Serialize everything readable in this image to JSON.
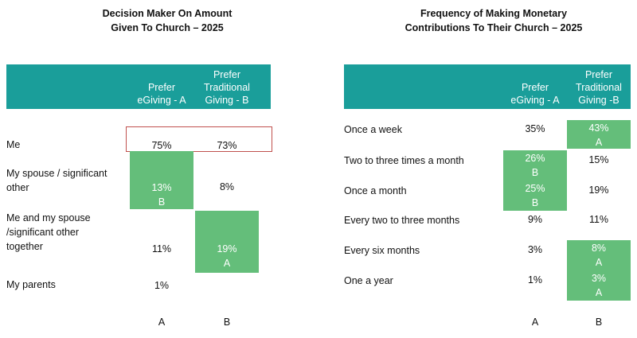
{
  "chart_data": [
    {
      "type": "table",
      "title": [
        "Decision Maker On Amount",
        "Given To Church – 2025"
      ],
      "columns": [
        [
          "Prefer",
          "eGiving - A"
        ],
        [
          "Prefer",
          "Traditional",
          "Giving - B"
        ]
      ],
      "rows": [
        {
          "label": [
            "Me"
          ],
          "values": [
            "75%",
            "73%"
          ],
          "sig": [
            "",
            ""
          ],
          "highlight": [
            false,
            false
          ],
          "outlined": true
        },
        {
          "label": [
            "My spouse / significant",
            "other"
          ],
          "values": [
            "13%",
            "8%"
          ],
          "sig": [
            "B",
            ""
          ],
          "highlight": [
            true,
            false
          ],
          "outlined": false
        },
        {
          "label": [
            "Me and my spouse",
            "/significant other",
            "together"
          ],
          "values": [
            "11%",
            "19%"
          ],
          "sig": [
            "",
            "A"
          ],
          "highlight": [
            false,
            true
          ],
          "outlined": false
        },
        {
          "label": [
            "My parents"
          ],
          "values": [
            "1%",
            ""
          ],
          "sig": [
            "",
            ""
          ],
          "highlight": [
            false,
            false
          ],
          "outlined": false
        }
      ],
      "footer": [
        "A",
        "B"
      ]
    },
    {
      "type": "table",
      "title": [
        "Frequency of Making Monetary",
        "Contributions To Their Church – 2025"
      ],
      "columns": [
        [
          "Prefer",
          "eGiving - A"
        ],
        [
          "Prefer",
          "Traditional",
          "Giving -B"
        ]
      ],
      "rows": [
        {
          "label": [
            "Once a week"
          ],
          "values": [
            "35%",
            "43%"
          ],
          "sig": [
            "",
            "A"
          ],
          "highlight": [
            false,
            true
          ]
        },
        {
          "label": [
            "Two to three times a month"
          ],
          "values": [
            "26%",
            "15%"
          ],
          "sig": [
            "B",
            ""
          ],
          "highlight": [
            true,
            false
          ]
        },
        {
          "label": [
            "Once a month"
          ],
          "values": [
            "25%",
            "19%"
          ],
          "sig": [
            "B",
            ""
          ],
          "highlight": [
            true,
            false
          ]
        },
        {
          "label": [
            "Every two to three months"
          ],
          "values": [
            "9%",
            "11%"
          ],
          "sig": [
            "",
            ""
          ],
          "highlight": [
            false,
            false
          ]
        },
        {
          "label": [
            "Every six months"
          ],
          "values": [
            "3%",
            "8%"
          ],
          "sig": [
            "",
            "A"
          ],
          "highlight": [
            false,
            true
          ]
        },
        {
          "label": [
            "One a year"
          ],
          "values": [
            "1%",
            "3%"
          ],
          "sig": [
            "",
            "A"
          ],
          "highlight": [
            false,
            true
          ]
        }
      ],
      "footer": [
        "A",
        "B"
      ]
    }
  ]
}
